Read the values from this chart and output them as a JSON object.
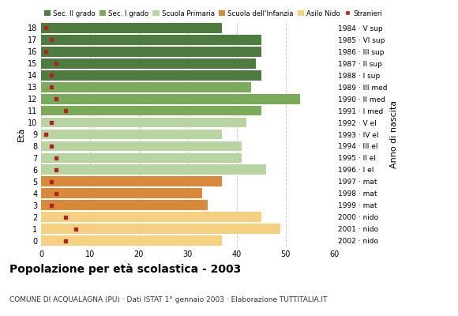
{
  "ages": [
    18,
    17,
    16,
    15,
    14,
    13,
    12,
    11,
    10,
    9,
    8,
    7,
    6,
    5,
    4,
    3,
    2,
    1,
    0
  ],
  "right_labels": [
    "1984 · V sup",
    "1985 · VI sup",
    "1986 · III sup",
    "1987 · II sup",
    "1988 · I sup",
    "1989 · III med",
    "1990 · II med",
    "1991 · I med",
    "1992 · V el",
    "1993 · IV el",
    "1994 · III el",
    "1995 · II el",
    "1996 · I el",
    "1997 · mat",
    "1998 · mat",
    "1999 · mat",
    "2000 · nido",
    "2001 · nido",
    "2002 · nido"
  ],
  "bar_values": [
    37,
    45,
    45,
    44,
    45,
    43,
    53,
    45,
    42,
    37,
    41,
    41,
    46,
    37,
    33,
    34,
    45,
    49,
    37
  ],
  "stranieri_values": [
    1,
    2,
    1,
    3,
    2,
    2,
    3,
    5,
    2,
    1,
    2,
    3,
    3,
    2,
    3,
    2,
    5,
    7,
    5
  ],
  "bar_colors": [
    "#4e7c3f",
    "#4e7c3f",
    "#4e7c3f",
    "#4e7c3f",
    "#4e7c3f",
    "#7aaa5a",
    "#7aaa5a",
    "#7aaa5a",
    "#b8d4a0",
    "#b8d4a0",
    "#b8d4a0",
    "#b8d4a0",
    "#b8d4a0",
    "#d9893a",
    "#d9893a",
    "#d9893a",
    "#f5d080",
    "#f5d080",
    "#f5d080"
  ],
  "legend_labels": [
    "Sec. II grado",
    "Sec. I grado",
    "Scuola Primaria",
    "Scuola dell'Infanzia",
    "Asilo Nido",
    "Stranieri"
  ],
  "legend_colors": [
    "#4e7c3f",
    "#7aaa5a",
    "#b8d4a0",
    "#d9893a",
    "#f5d080",
    "#b22222"
  ],
  "stranieri_color": "#b22222",
  "title": "Popolazione per età scolastica - 2003",
  "subtitle": "COMUNE DI ACQUALAGNA (PU) · Dati ISTAT 1° gennaio 2003 · Elaborazione TUTTITALIA.IT",
  "ylabel": "Età",
  "right_ylabel": "Anno di nascita",
  "xlim": [
    0,
    60
  ],
  "xticks": [
    0,
    10,
    20,
    30,
    40,
    50,
    60
  ],
  "bar_height": 0.85,
  "background_color": "#ffffff",
  "grid_color": "#cccccc"
}
